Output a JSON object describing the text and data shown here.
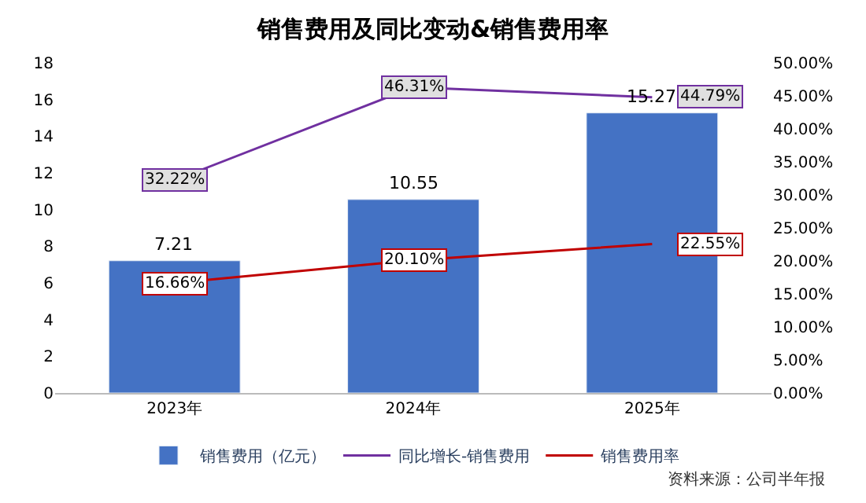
{
  "chart_data": {
    "type": "bar",
    "title": "销售费用及同比变动&销售费用率",
    "categories": [
      "2023年",
      "2024年",
      "2025年"
    ],
    "series": [
      {
        "name": "销售费用（亿元）",
        "color": "#4472c4",
        "values": [
          7.21,
          10.55,
          15.27
        ],
        "data_labels": true
      },
      {
        "name": "同比增长-销售费用",
        "type": "line",
        "axis": "y2",
        "color": "#7030a0",
        "values": [
          32.22,
          46.31,
          44.79
        ],
        "value_labels": [
          "32.22%",
          "46.31%",
          "44.79%"
        ]
      },
      {
        "name": "销售费用率",
        "type": "line",
        "axis": "y2",
        "color": "#c00000",
        "values": [
          16.66,
          20.1,
          22.55
        ],
        "value_labels": [
          "16.66%",
          "20.10%",
          "22.55%"
        ]
      }
    ],
    "ylim": [
      0,
      18
    ],
    "yticks": [
      0,
      2,
      4,
      6,
      8,
      10,
      12,
      14,
      16,
      18
    ],
    "y2lim": [
      0,
      50
    ],
    "y2ticks": [
      {
        "value": 0,
        "label": "0.00%"
      },
      {
        "value": 5,
        "label": "5.00%"
      },
      {
        "value": 10,
        "label": "10.00%"
      },
      {
        "value": 15,
        "label": "15.00%"
      },
      {
        "value": 20,
        "label": "20.00%"
      },
      {
        "value": 25,
        "label": "25.00%"
      },
      {
        "value": 30,
        "label": "30.00%"
      },
      {
        "value": 35,
        "label": "35.00%"
      },
      {
        "value": 40,
        "label": "40.00%"
      },
      {
        "value": 45,
        "label": "45.00%"
      },
      {
        "value": 50,
        "label": "50.00%"
      }
    ],
    "legend": "bottom",
    "line_style": "solid",
    "annotations": [
      "资料来源：公司半年报"
    ]
  }
}
